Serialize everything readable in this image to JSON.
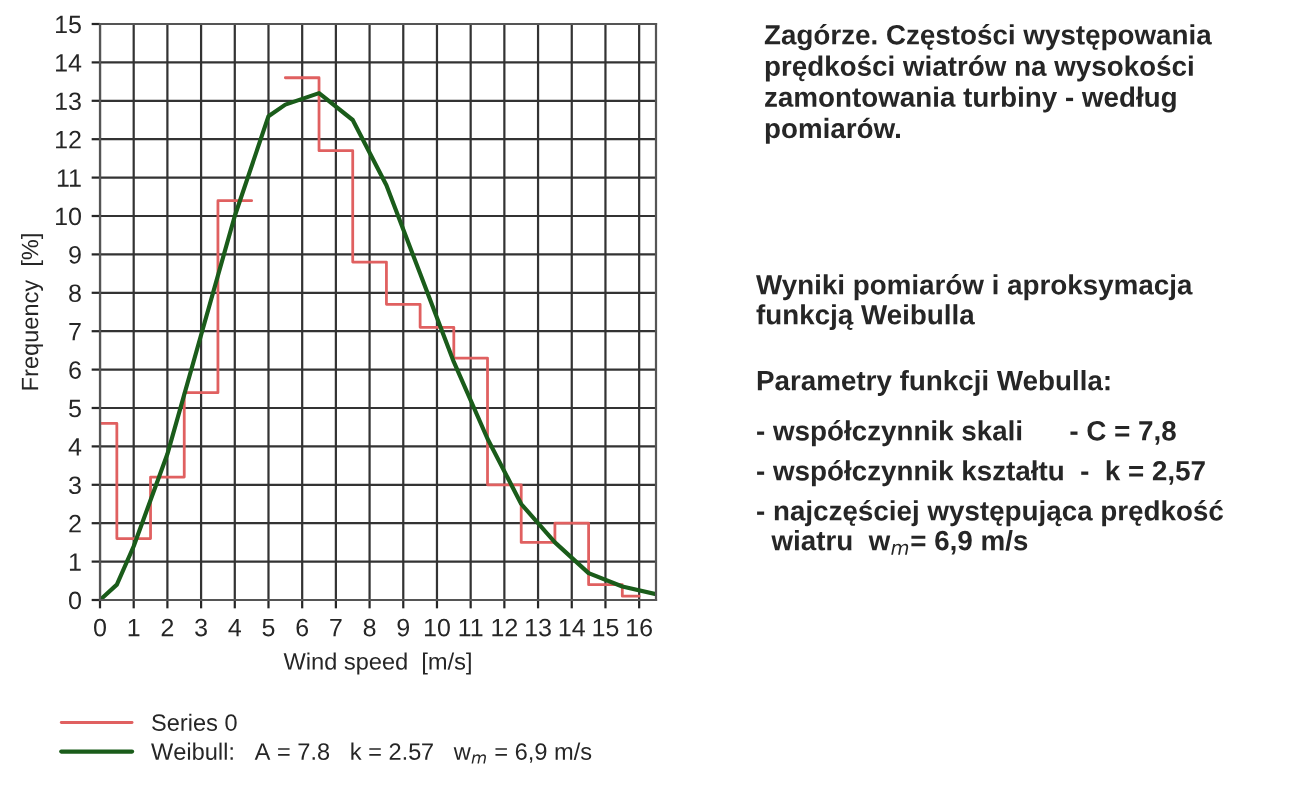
{
  "chart_data": {
    "type": "step",
    "title": "Zagórze. Częstości występowania prędkości wiatrów na wysokości zamontowania turbiny - według pomiarów.",
    "xlabel": "Wind speed  [m/s]",
    "ylabel": "Frequency  [%]",
    "annotations": [
      "Wyniki pomiarów i aproksymacja\nfunkcją Weibulla",
      "Parametry funkcji Webulla:",
      "- współczynnik skali      - C = 7,8",
      "- współczynnik kształtu  -  k = 2,57",
      "- najczęściej występująca prędkość\n  wiatru  w$_{m}$= 6,9 m/s"
    ],
    "x": [
      0,
      1,
      2,
      3,
      4,
      5,
      6,
      7,
      8,
      9,
      10,
      11,
      12,
      13,
      14,
      15,
      16
    ],
    "series": [
      {
        "name": "Series 0",
        "color": "#e06060",
        "values": [
          4.6,
          1.6,
          3.2,
          5.4,
          10.4,
          null,
          13.6,
          11.7,
          8.8,
          7.7,
          7.1,
          6.3,
          3.0,
          1.5,
          2.0,
          0.4,
          0.1
        ]
      },
      {
        "name": "Weibull:   A = 7.8   k = 2.57   w$_{m}$ = 6,9 m/s",
        "color": "#1a5c1a",
        "type": "line",
        "x": [
          0,
          0.5,
          1,
          2,
          3,
          4,
          5,
          5.5,
          6.5,
          7.5,
          8.5,
          9.5,
          10.5,
          11.5,
          12.5,
          13.5,
          14.5,
          15.5,
          16.5
        ],
        "values": [
          0,
          0.4,
          1.4,
          3.8,
          6.9,
          10.0,
          12.6,
          12.9,
          13.2,
          12.5,
          10.8,
          8.5,
          6.2,
          4.2,
          2.5,
          1.5,
          0.7,
          0.35,
          0.15
        ]
      }
    ],
    "xlim": [
      0,
      16.5
    ],
    "ylim": [
      0,
      15
    ],
    "xticks": [
      0,
      1,
      2,
      3,
      4,
      5,
      6,
      7,
      8,
      9,
      10,
      11,
      12,
      13,
      14,
      15,
      16
    ],
    "yticks": [
      0,
      1,
      2,
      3,
      4,
      5,
      6,
      7,
      8,
      9,
      10,
      11,
      12,
      13,
      14,
      15
    ],
    "grid": true,
    "legend": "bottom left",
    "line_style": "solid",
    "marker": "none"
  }
}
